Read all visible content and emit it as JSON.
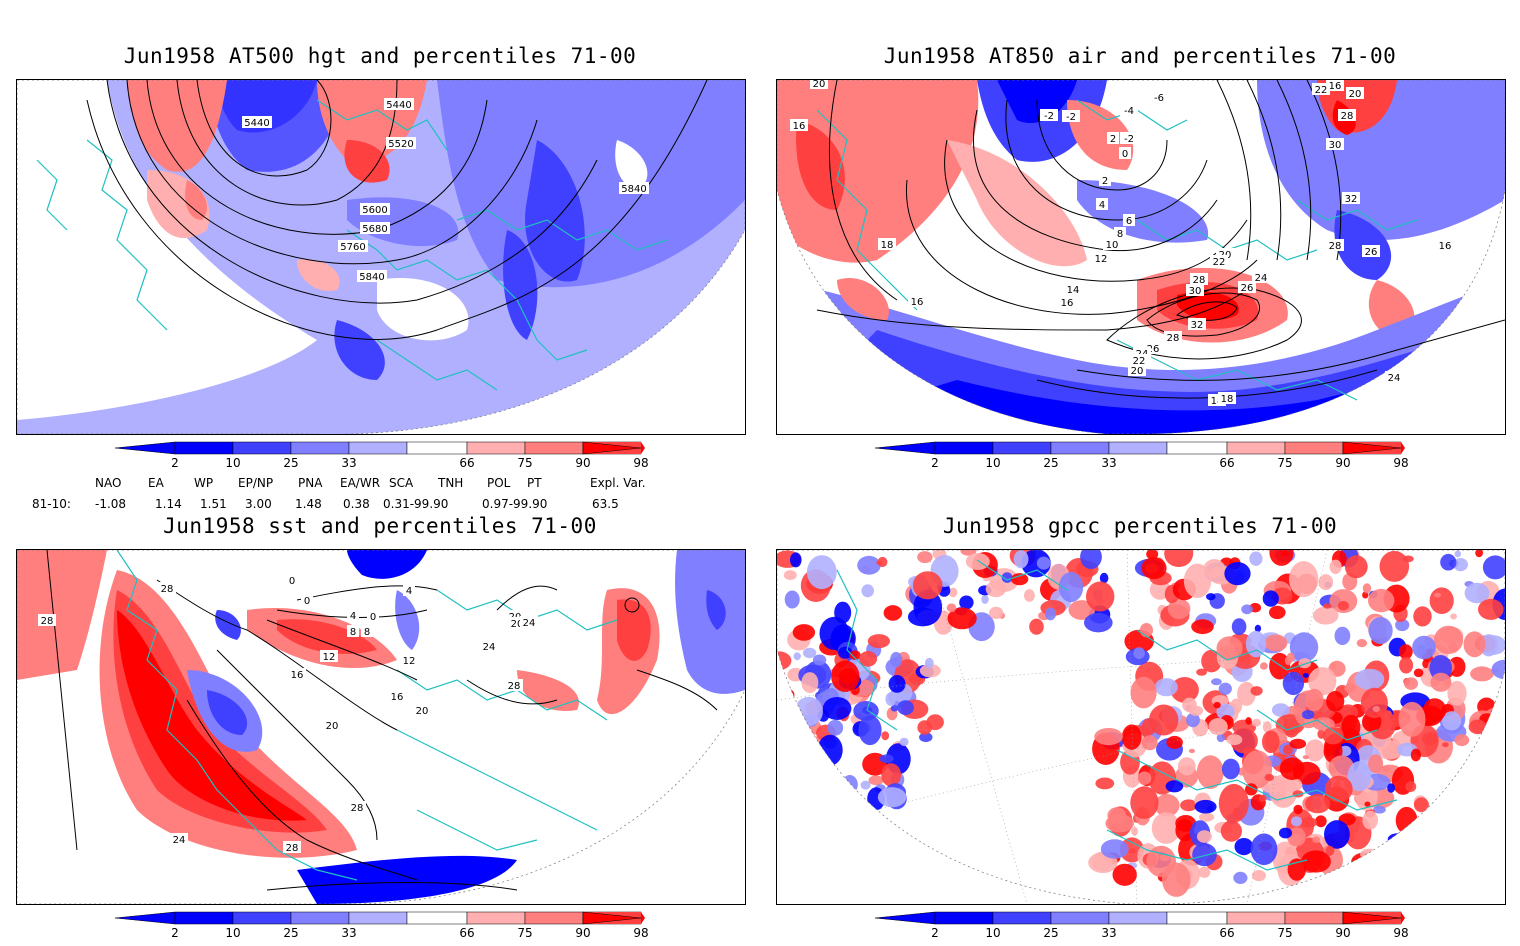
{
  "panels": {
    "top_left": {
      "title": "Jun1958 AT500 hgt and percentiles 71-00",
      "contour_labels": [
        "5440",
        "5440",
        "5520",
        "5600",
        "5680",
        "5760",
        "5840",
        "5840"
      ]
    },
    "top_right": {
      "title": "Jun1958 AT850 air and percentiles 71-00",
      "contour_labels": [
        "20",
        "16",
        "18",
        "16",
        "-2",
        "-2",
        "2",
        "-6",
        "-4",
        "-2",
        "0",
        "2",
        "4",
        "6",
        "8",
        "10",
        "12",
        "14",
        "16",
        "20",
        "22",
        "24",
        "26",
        "28",
        "30",
        "32",
        "28",
        "26",
        "24",
        "22",
        "20",
        "18",
        "16",
        "22",
        "20",
        "28",
        "30",
        "32",
        "28",
        "26",
        "24",
        "18",
        "16"
      ]
    },
    "bottom_left": {
      "title": "Jun1958 sst and percentiles 71-00",
      "contour_labels": [
        "28",
        "28",
        "0",
        "0",
        "4",
        "0",
        "4",
        "8",
        "8",
        "12",
        "12",
        "16",
        "16",
        "20",
        "20",
        "20",
        "20",
        "24",
        "24",
        "28",
        "28",
        "24",
        "28"
      ]
    },
    "bottom_right": {
      "title": "Jun1958 gpcc percentiles 71-00"
    }
  },
  "colorbar": {
    "ticks": [
      "2",
      "10",
      "25",
      "33",
      "66",
      "75",
      "90",
      "98"
    ],
    "colors": {
      "blue_dark": "#0000ff",
      "blue_mid": "#4040ff",
      "blue_light": "#7f7fff",
      "blue_pale": "#b0b0ff",
      "red_pale": "#ffafaf",
      "red_light": "#ff7f7f",
      "red_mid": "#ff4040",
      "red_dark": "#ff0000",
      "coast": "#20c0c0"
    }
  },
  "indices": {
    "header": [
      "NAO",
      "EA",
      "WP",
      "EP/NP",
      "PNA",
      "EA/WR",
      "SCA",
      "TNH",
      "POL",
      "PT",
      "Expl. Var."
    ],
    "row_label": "81-10:",
    "values": [
      "-1.08",
      "1.14",
      "1.51",
      "3.00",
      "1.48",
      "0.38",
      "0.31-99.90",
      "0.97-99.90",
      "63.5"
    ]
  }
}
